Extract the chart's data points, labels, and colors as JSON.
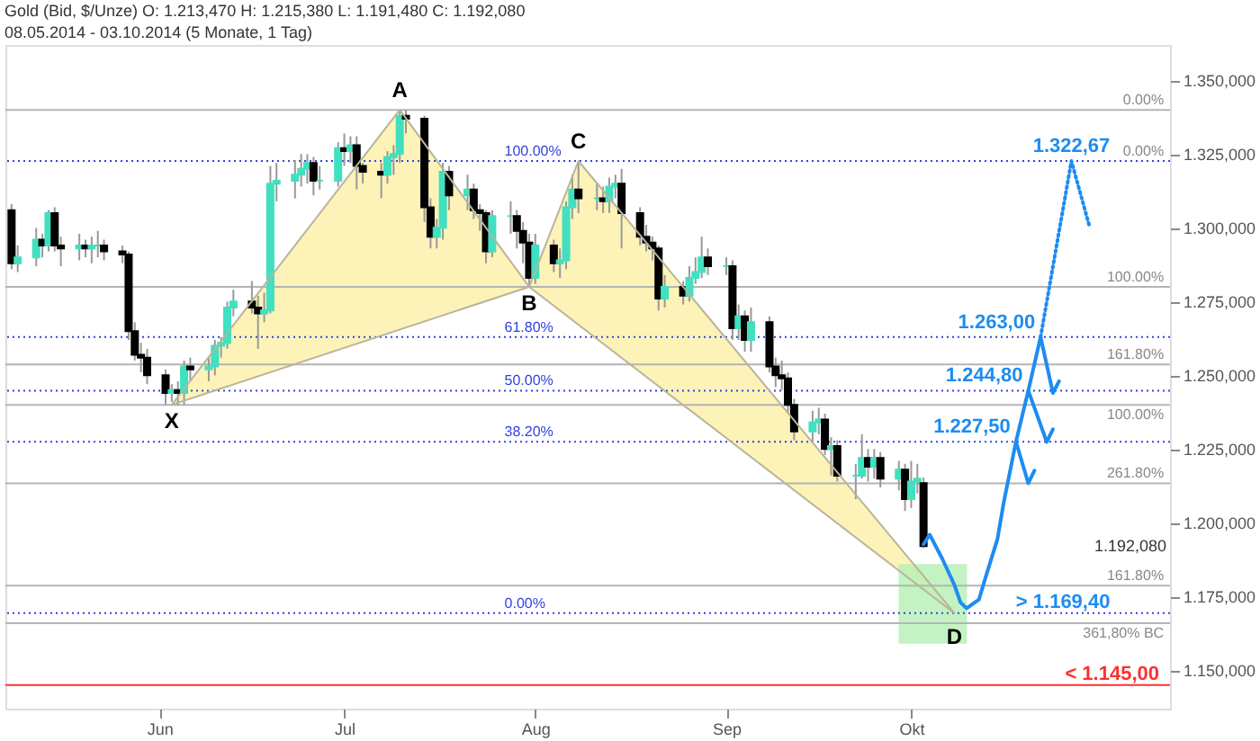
{
  "chart_data": {
    "type": "candlestick",
    "title": "Gold (Bid, $/Unze) O: 1.213,470 H: 1.215,380 L: 1.191,480 C: 1.192,080",
    "subtitle": "08.05.2014 - 03.10.2014 (5 Monate, 1 Tag)",
    "xlim": [
      "2014-05-07",
      "2014-11-12"
    ],
    "xticks": [
      {
        "value": "2014-06-01",
        "label": "Jun"
      },
      {
        "value": "2014-07-01",
        "label": "Jul"
      },
      {
        "value": "2014-08-01",
        "label": "Aug"
      },
      {
        "value": "2014-09-01",
        "label": "Sep"
      },
      {
        "value": "2014-10-01",
        "label": "Okt"
      }
    ],
    "ylim": [
      1137,
      1362
    ],
    "yticks": [
      {
        "value": 1150,
        "label": "1.150,000"
      },
      {
        "value": 1175,
        "label": "1.175,000"
      },
      {
        "value": 1200,
        "label": "1.200,000"
      },
      {
        "value": 1225,
        "label": "1.225,000"
      },
      {
        "value": 1250,
        "label": "1.250,000"
      },
      {
        "value": 1275,
        "label": "1.275,000"
      },
      {
        "value": 1300,
        "label": "1.300,000"
      },
      {
        "value": 1325,
        "label": "1.325,000"
      },
      {
        "value": 1350,
        "label": "1.350,000"
      }
    ],
    "grid": false,
    "x": [
      "2014-05-08",
      "2014-05-09",
      "2014-05-12",
      "2014-05-13",
      "2014-05-14",
      "2014-05-15",
      "2014-05-16",
      "2014-05-19",
      "2014-05-20",
      "2014-05-21",
      "2014-05-22",
      "2014-05-23",
      "2014-05-26",
      "2014-05-27",
      "2014-05-28",
      "2014-05-29",
      "2014-05-30",
      "2014-06-02",
      "2014-06-03",
      "2014-06-04",
      "2014-06-05",
      "2014-06-06",
      "2014-06-09",
      "2014-06-10",
      "2014-06-11",
      "2014-06-12",
      "2014-06-13",
      "2014-06-16",
      "2014-06-17",
      "2014-06-18",
      "2014-06-19",
      "2014-06-20",
      "2014-06-23",
      "2014-06-24",
      "2014-06-25",
      "2014-06-26",
      "2014-06-27",
      "2014-06-30",
      "2014-07-01",
      "2014-07-02",
      "2014-07-03",
      "2014-07-04",
      "2014-07-07",
      "2014-07-08",
      "2014-07-09",
      "2014-07-10",
      "2014-07-11",
      "2014-07-14",
      "2014-07-15",
      "2014-07-16",
      "2014-07-17",
      "2014-07-18",
      "2014-07-21",
      "2014-07-22",
      "2014-07-23",
      "2014-07-24",
      "2014-07-25",
      "2014-07-28",
      "2014-07-29",
      "2014-07-30",
      "2014-07-31",
      "2014-08-01",
      "2014-08-04",
      "2014-08-05",
      "2014-08-06",
      "2014-08-07",
      "2014-08-08",
      "2014-08-11",
      "2014-08-12",
      "2014-08-13",
      "2014-08-14",
      "2014-08-15",
      "2014-08-18",
      "2014-08-19",
      "2014-08-20",
      "2014-08-21",
      "2014-08-22",
      "2014-08-25",
      "2014-08-26",
      "2014-08-27",
      "2014-08-28",
      "2014-08-29",
      "2014-09-01",
      "2014-09-02",
      "2014-09-03",
      "2014-09-04",
      "2014-09-05",
      "2014-09-08",
      "2014-09-09",
      "2014-09-10",
      "2014-09-11",
      "2014-09-12",
      "2014-09-15",
      "2014-09-16",
      "2014-09-17",
      "2014-09-18",
      "2014-09-19",
      "2014-09-22",
      "2014-09-23",
      "2014-09-24",
      "2014-09-25",
      "2014-09-26",
      "2014-09-29",
      "2014-09-30",
      "2014-10-01",
      "2014-10-02",
      "2014-10-03"
    ],
    "ohlc": [
      [
        1306,
        1308,
        1286,
        1288
      ],
      [
        1288,
        1294,
        1285,
        1290
      ],
      [
        1290,
        1300,
        1287,
        1296
      ],
      [
        1296,
        1298,
        1290,
        1294
      ],
      [
        1294,
        1306,
        1292,
        1305
      ],
      [
        1305,
        1307,
        1292,
        1294
      ],
      [
        1294,
        1297,
        1287,
        1293
      ],
      [
        1293,
        1298,
        1289,
        1294
      ],
      [
        1294,
        1296,
        1290,
        1293
      ],
      [
        1293,
        1297,
        1288,
        1294
      ],
      [
        1294,
        1299,
        1290,
        1294
      ],
      [
        1294,
        1296,
        1289,
        1292
      ],
      [
        1292,
        1294,
        1288,
        1291
      ],
      [
        1291,
        1292,
        1262,
        1265
      ],
      [
        1265,
        1268,
        1255,
        1257
      ],
      [
        1257,
        1261,
        1251,
        1256
      ],
      [
        1256,
        1259,
        1247,
        1250
      ],
      [
        1250,
        1252,
        1240,
        1244
      ],
      [
        1244,
        1247,
        1241,
        1245
      ],
      [
        1245,
        1248,
        1240,
        1244
      ],
      [
        1244,
        1255,
        1240,
        1253
      ],
      [
        1253,
        1256,
        1248,
        1252
      ],
      [
        1252,
        1256,
        1248,
        1253
      ],
      [
        1253,
        1262,
        1250,
        1260
      ],
      [
        1260,
        1263,
        1256,
        1261
      ],
      [
        1261,
        1275,
        1259,
        1273
      ],
      [
        1273,
        1279,
        1270,
        1275
      ],
      [
        1275,
        1282,
        1271,
        1273
      ],
      [
        1273,
        1277,
        1259,
        1271
      ],
      [
        1271,
        1278,
        1268,
        1272
      ],
      [
        1272,
        1321,
        1271,
        1315
      ],
      [
        1315,
        1322,
        1309,
        1316
      ],
      [
        1316,
        1323,
        1310,
        1318
      ],
      [
        1318,
        1325,
        1314,
        1320
      ],
      [
        1320,
        1325,
        1315,
        1322
      ],
      [
        1322,
        1324,
        1311,
        1316
      ],
      [
        1316,
        1321,
        1313,
        1316
      ],
      [
        1316,
        1329,
        1314,
        1327
      ],
      [
        1327,
        1332,
        1321,
        1326
      ],
      [
        1326,
        1331,
        1322,
        1328
      ],
      [
        1328,
        1331,
        1313,
        1321
      ],
      [
        1321,
        1322,
        1315,
        1319
      ],
      [
        1319,
        1322,
        1310,
        1318
      ],
      [
        1318,
        1326,
        1315,
        1324
      ],
      [
        1324,
        1328,
        1318,
        1325
      ],
      [
        1325,
        1340,
        1322,
        1338
      ],
      [
        1338,
        1340,
        1332,
        1337
      ],
      [
        1337,
        1338,
        1302,
        1307
      ],
      [
        1307,
        1310,
        1293,
        1297
      ],
      [
        1297,
        1303,
        1293,
        1300
      ],
      [
        1300,
        1322,
        1296,
        1319
      ],
      [
        1319,
        1321,
        1306,
        1311
      ],
      [
        1311,
        1318,
        1306,
        1313
      ],
      [
        1313,
        1315,
        1303,
        1306
      ],
      [
        1306,
        1308,
        1299,
        1305
      ],
      [
        1305,
        1306,
        1288,
        1292
      ],
      [
        1292,
        1306,
        1290,
        1304
      ],
      [
        1304,
        1309,
        1298,
        1304
      ],
      [
        1304,
        1306,
        1293,
        1299
      ],
      [
        1299,
        1302,
        1288,
        1295
      ],
      [
        1295,
        1298,
        1280,
        1283
      ],
      [
        1283,
        1298,
        1281,
        1294
      ],
      [
        1294,
        1296,
        1285,
        1288
      ],
      [
        1288,
        1293,
        1283,
        1289
      ],
      [
        1289,
        1309,
        1286,
        1307
      ],
      [
        1307,
        1318,
        1303,
        1313
      ],
      [
        1313,
        1322,
        1305,
        1310
      ],
      [
        1310,
        1315,
        1306,
        1310
      ],
      [
        1310,
        1314,
        1305,
        1309
      ],
      [
        1309,
        1317,
        1305,
        1314
      ],
      [
        1314,
        1318,
        1310,
        1315
      ],
      [
        1315,
        1320,
        1293,
        1305
      ],
      [
        1305,
        1307,
        1294,
        1297
      ],
      [
        1297,
        1301,
        1292,
        1295
      ],
      [
        1295,
        1297,
        1289,
        1293
      ],
      [
        1293,
        1294,
        1272,
        1276
      ],
      [
        1276,
        1284,
        1273,
        1280
      ],
      [
        1280,
        1282,
        1274,
        1277
      ],
      [
        1277,
        1287,
        1275,
        1283
      ],
      [
        1283,
        1290,
        1281,
        1285
      ],
      [
        1285,
        1297,
        1283,
        1290
      ],
      [
        1290,
        1293,
        1284,
        1287
      ],
      [
        1287,
        1290,
        1284,
        1287
      ],
      [
        1287,
        1289,
        1262,
        1266
      ],
      [
        1266,
        1274,
        1262,
        1270
      ],
      [
        1270,
        1272,
        1258,
        1262
      ],
      [
        1262,
        1273,
        1258,
        1268
      ],
      [
        1268,
        1270,
        1251,
        1253
      ],
      [
        1253,
        1256,
        1246,
        1250
      ],
      [
        1250,
        1255,
        1245,
        1249
      ],
      [
        1249,
        1251,
        1237,
        1240
      ],
      [
        1240,
        1242,
        1228,
        1231
      ],
      [
        1231,
        1238,
        1227,
        1234
      ],
      [
        1234,
        1239,
        1230,
        1235
      ],
      [
        1235,
        1237,
        1223,
        1225
      ],
      [
        1225,
        1229,
        1216,
        1226
      ],
      [
        1226,
        1228,
        1214,
        1216
      ],
      [
        1216,
        1220,
        1208,
        1216
      ],
      [
        1216,
        1230,
        1215,
        1222
      ],
      [
        1222,
        1225,
        1214,
        1219
      ],
      [
        1219,
        1225,
        1215,
        1222
      ],
      [
        1222,
        1224,
        1212,
        1215
      ],
      [
        1215,
        1221,
        1211,
        1218
      ],
      [
        1218,
        1220,
        1204,
        1208
      ],
      [
        1208,
        1221,
        1205,
        1214
      ],
      [
        1214,
        1220,
        1210,
        1215
      ],
      [
        1213.47,
        1215.38,
        1191.48,
        1192.08
      ]
    ],
    "colors": [
      "#000000",
      "#40e0c0",
      "#40e0c0",
      "#000000",
      "#40e0c0",
      "#000000",
      "#000000",
      "#40e0c0",
      "#000000",
      "#40e0c0",
      "#40e0c0",
      "#000000",
      "#000000",
      "#000000",
      "#000000",
      "#000000",
      "#000000",
      "#000000",
      "#40e0c0",
      "#000000",
      "#40e0c0",
      "#000000",
      "#40e0c0",
      "#40e0c0",
      "#40e0c0",
      "#40e0c0",
      "#40e0c0",
      "#000000",
      "#000000",
      "#40e0c0",
      "#40e0c0",
      "#40e0c0",
      "#40e0c0",
      "#40e0c0",
      "#40e0c0",
      "#000000",
      "#40e0c0",
      "#40e0c0",
      "#000000",
      "#40e0c0",
      "#000000",
      "#000000",
      "#000000",
      "#40e0c0",
      "#40e0c0",
      "#40e0c0",
      "#000000",
      "#000000",
      "#000000",
      "#40e0c0",
      "#40e0c0",
      "#000000",
      "#40e0c0",
      "#000000",
      "#000000",
      "#000000",
      "#40e0c0",
      "#40e0c0",
      "#000000",
      "#000000",
      "#000000",
      "#40e0c0",
      "#000000",
      "#40e0c0",
      "#40e0c0",
      "#40e0c0",
      "#000000",
      "#40e0c0",
      "#000000",
      "#40e0c0",
      "#40e0c0",
      "#000000",
      "#000000",
      "#000000",
      "#000000",
      "#000000",
      "#40e0c0",
      "#000000",
      "#40e0c0",
      "#40e0c0",
      "#40e0c0",
      "#000000",
      "#40e0c0",
      "#000000",
      "#40e0c0",
      "#000000",
      "#40e0c0",
      "#000000",
      "#000000",
      "#000000",
      "#000000",
      "#000000",
      "#40e0c0",
      "#40e0c0",
      "#000000",
      "#40e0c0",
      "#000000",
      "#40e0c0",
      "#40e0c0",
      "#000000",
      "#40e0c0",
      "#000000",
      "#40e0c0",
      "#000000",
      "#40e0c0",
      "#40e0c0",
      "#000000"
    ],
    "series": [
      {
        "type": "bar",
        "color": "#b4f0b4",
        "x": [
          "2014-10-04T12:00"
        ],
        "values": [
          27
        ],
        "base": [
          1159
        ]
      },
      {
        "type": "line",
        "color": "#b8b49c",
        "line_style": "solid",
        "x": [
          "2014-06-03",
          "2014-07-10",
          "2014-07-31",
          "2014-08-08",
          "2014-10-08"
        ],
        "values": [
          1240,
          1340,
          1280,
          1322.67,
          1169.4
        ]
      },
      {
        "type": "line",
        "color": "#b8b49c",
        "line_style": "solid",
        "x": [
          "2014-06-03",
          "2014-07-31",
          "2014-10-08"
        ],
        "values": [
          1240,
          1280,
          1169.4
        ]
      },
      {
        "type": "line",
        "color": "#1e8cf0",
        "line_style": "solid",
        "x": [
          "2014-10-03",
          "2014-10-04",
          "2014-10-06",
          "2014-10-08",
          "2014-10-09",
          "2014-10-10",
          "2014-10-12",
          "2014-10-13",
          "2014-10-15",
          "2014-10-16",
          "2014-10-18",
          "2014-10-20",
          "2014-10-22"
        ],
        "values": [
          1192.7,
          1196,
          1188,
          1179,
          1173,
          1171,
          1174,
          1181,
          1194.5,
          1206.7,
          1227.5,
          1244.8,
          1263
        ]
      },
      {
        "type": "line",
        "color": "#1e8cf0",
        "line_style": "dotted",
        "x": [
          "2014-10-22",
          "2014-10-27",
          "2014-10-30"
        ],
        "values": [
          1263,
          1322.67,
          1300
        ]
      },
      {
        "type": "line",
        "color": "#1e8cf0",
        "line_style": "solid",
        "x": [
          "2014-10-18",
          "2014-10-20",
          "2014-10-21"
        ],
        "values": [
          1227.5,
          1213.4,
          1217.7
        ]
      },
      {
        "type": "line",
        "color": "#1e8cf0",
        "line_style": "solid",
        "x": [
          "2014-10-20",
          "2014-10-23",
          "2014-10-24"
        ],
        "values": [
          1244.8,
          1227.4,
          1231.7
        ]
      },
      {
        "type": "line",
        "color": "#1e8cf0",
        "line_style": "solid",
        "x": [
          "2014-10-22",
          "2014-10-24",
          "2014-10-25"
        ],
        "values": [
          1263,
          1244,
          1248
        ]
      }
    ],
    "ref_lines": [
      {
        "axis": "y",
        "value": 1340,
        "color": "#b4b4b4",
        "line_style": "solid"
      },
      {
        "axis": "y",
        "value": 1322.67,
        "color": "#3344dd",
        "line_style": "dotted"
      },
      {
        "axis": "y",
        "value": 1280,
        "color": "#b4b4b4",
        "line_style": "solid"
      },
      {
        "axis": "y",
        "value": 1263,
        "color": "#3344dd",
        "line_style": "dotted"
      },
      {
        "axis": "y",
        "value": 1253.7,
        "color": "#b4b4b4",
        "line_style": "solid"
      },
      {
        "axis": "y",
        "value": 1244.8,
        "color": "#3344dd",
        "line_style": "dotted"
      },
      {
        "axis": "y",
        "value": 1240,
        "color": "#b4b4b4",
        "line_style": "solid"
      },
      {
        "axis": "y",
        "value": 1227.5,
        "color": "#3344dd",
        "line_style": "dotted"
      },
      {
        "axis": "y",
        "value": 1213.4,
        "color": "#b4b4b4",
        "line_style": "solid"
      },
      {
        "axis": "y",
        "value": 1178.7,
        "color": "#b4b4b4",
        "line_style": "solid"
      },
      {
        "axis": "y",
        "value": 1169.4,
        "color": "#3344dd",
        "line_style": "dotted"
      },
      {
        "axis": "y",
        "value": 1166,
        "color": "#b4b4b4",
        "line_style": "solid"
      },
      {
        "axis": "y",
        "value": 1145,
        "label": "< 1.145,00",
        "color": "#ff3030",
        "line_style": "solid"
      }
    ],
    "annotations": [
      {
        "text": "X",
        "x": "2014-06-03",
        "y": 1240
      },
      {
        "text": "A",
        "x": "2014-07-10",
        "y": 1340
      },
      {
        "text": "B",
        "x": "2014-07-31",
        "y": 1280
      },
      {
        "text": "C",
        "x": "2014-08-08",
        "y": 1322.67
      },
      {
        "text": "D",
        "x": "2014-10-08",
        "y": 1169.4
      },
      {
        "text": "1.322,67",
        "x": "2014-10-27",
        "y": 1322.67
      },
      {
        "text": "1.263,00",
        "x": "2014-10-22",
        "y": 1263
      },
      {
        "text": "1.244,80",
        "x": "2014-10-20",
        "y": 1244.8
      },
      {
        "text": "1.227,50",
        "x": "2014-10-18",
        "y": 1227.5
      },
      {
        "text": "> 1.169,40",
        "x": "2014-10-18",
        "y": 1169.4
      },
      "1.192,080",
      {
        "text": "100.00%",
        "x": "2014-07-27",
        "y": 1322.67
      },
      {
        "text": "61.80%",
        "x": "2014-07-27",
        "y": 1263
      },
      {
        "text": "50.00%",
        "x": "2014-07-27",
        "y": 1244.8
      },
      {
        "text": "38.20%",
        "x": "2014-07-27",
        "y": 1227.5
      },
      {
        "text": "0.00%",
        "x": "2014-07-27",
        "y": 1169.4
      },
      {
        "text": "0.00%",
        "x": "2014-11-11",
        "y": 1340
      },
      {
        "text": "0.00%",
        "x": "2014-11-11",
        "y": 1322.67
      },
      {
        "text": "100.00%",
        "x": "2014-11-11",
        "y": 1280
      },
      {
        "text": "161.80%",
        "x": "2014-11-11",
        "y": 1253.7
      },
      {
        "text": "100.00%",
        "x": "2014-11-11",
        "y": 1240
      },
      {
        "text": "261.80%",
        "x": "2014-11-11",
        "y": 1213.4
      },
      {
        "text": "161.80%",
        "x": "2014-11-11",
        "y": 1178.7
      },
      {
        "text": "361,80% BC",
        "x": "2014-11-11",
        "y": 1166
      }
    ]
  }
}
